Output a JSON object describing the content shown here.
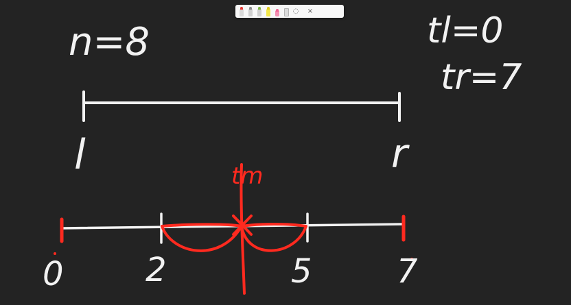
{
  "annotations": {
    "n_label": "n=8",
    "tl_label": "tl=0",
    "tr_label": "tr=7",
    "l_label": "l",
    "r_label": "r",
    "tm_label": "tm",
    "tick_0": "0",
    "tick_2": "2",
    "tick_5": "5",
    "tick_7": "7"
  },
  "toolbar": {
    "tools": [
      "pen-red-icon",
      "pencil-icon",
      "marker-green-icon",
      "marker-yellow-icon",
      "eraser-icon",
      "ruler-icon",
      "lasso-icon"
    ],
    "lasso_glyph": "◌",
    "close_glyph": "×"
  },
  "colors": {
    "background": "#232323",
    "ink_white": "#f2f2f2",
    "ink_red": "#ff2a1f"
  }
}
